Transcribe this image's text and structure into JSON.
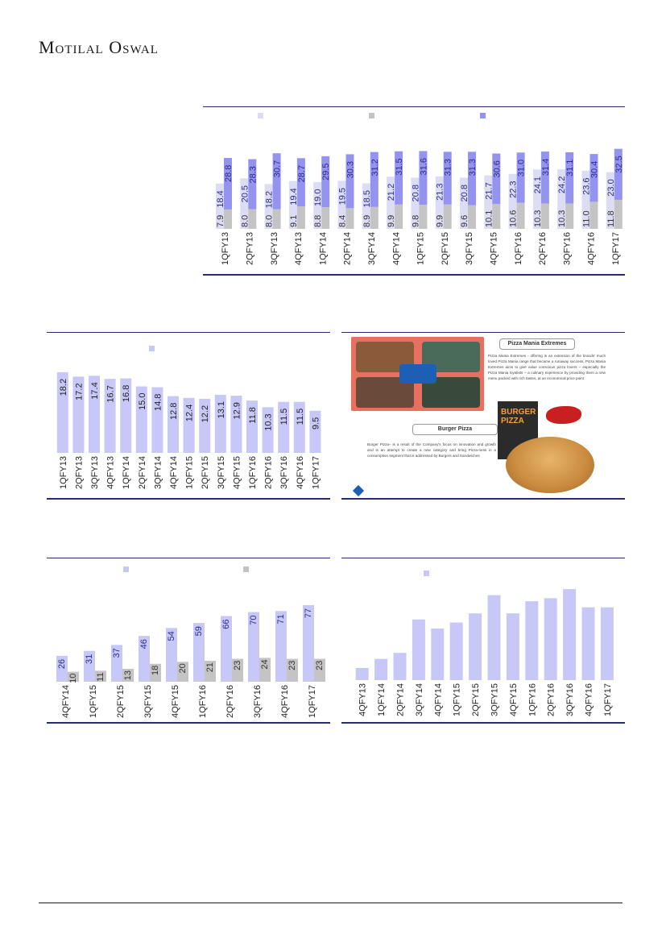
{
  "brand": "Motilal Oswal",
  "chart_data": [
    {
      "type": "bar",
      "categories": [
        "1QFY13",
        "2QFY13",
        "3QFY13",
        "4QFY13",
        "1QFY14",
        "2QFY14",
        "3QFY14",
        "4QFY14",
        "1QFY15",
        "2QFY15",
        "3QFY15",
        "4QFY15",
        "1QFY16",
        "2QFY16",
        "3QFY16",
        "4QFY16",
        "1QFY17"
      ],
      "series": [
        {
          "values": [
            18.4,
            20.5,
            18.2,
            19.4,
            19.0,
            19.5,
            18.5,
            21.2,
            20.8,
            21.3,
            20.8,
            21.7,
            22.3,
            24.1,
            24.2,
            23.6,
            23.0
          ],
          "color": "#dcdcf5",
          "labeled": true
        },
        {
          "values": [
            7.9,
            8.0,
            8.0,
            9.1,
            8.8,
            8.4,
            8.9,
            9.9,
            9.8,
            9.9,
            9.6,
            10.1,
            10.6,
            10.3,
            10.3,
            11.0,
            11.8
          ],
          "color": "#c4c4c4",
          "labeled": true
        },
        {
          "values": [
            28.8,
            28.3,
            30.7,
            28.7,
            29.5,
            30.3,
            31.2,
            31.5,
            31.6,
            31.3,
            31.3,
            30.6,
            31.0,
            31.4,
            31.1,
            30.4,
            32.5
          ],
          "color": "#9494f0",
          "labeled": true
        }
      ],
      "ylim": [
        0,
        36
      ]
    },
    {
      "type": "bar",
      "categories": [
        "1QFY13",
        "2QFY13",
        "3QFY13",
        "4QFY13",
        "1QFY14",
        "2QFY14",
        "3QFY14",
        "4QFY14",
        "1QFY15",
        "2QFY15",
        "3QFY15",
        "4QFY15",
        "1QFY16",
        "2QFY16",
        "3QFY16",
        "4QFY16",
        "1QFY17"
      ],
      "series": [
        {
          "values": [
            18.2,
            17.2,
            17.4,
            16.7,
            16.8,
            15.0,
            14.8,
            12.8,
            12.4,
            12.2,
            13.1,
            12.9,
            11.8,
            10.3,
            11.5,
            11.5,
            9.5
          ],
          "color": "#c8c8f8",
          "labeled": true
        }
      ],
      "ylim": [
        0,
        20
      ]
    },
    {
      "type": "bar",
      "categories": [
        "4QFY14",
        "1QFY15",
        "2QFY15",
        "3QFY15",
        "4QFY15",
        "1QFY16",
        "2QFY16",
        "3QFY16",
        "4QFY16",
        "1QFY17"
      ],
      "series": [
        {
          "values": [
            26,
            31,
            37,
            46,
            54,
            59,
            66,
            70,
            71,
            77
          ],
          "color": "#c8c8f8",
          "labeled": true
        },
        {
          "values": [
            10,
            11,
            13,
            18,
            20,
            21,
            23,
            24,
            23,
            23
          ],
          "color": "#c4c4c4",
          "labeled": true
        }
      ],
      "ylim": [
        0,
        85
      ]
    },
    {
      "type": "bar",
      "categories": [
        "4QFY13",
        "1QFY14",
        "2QFY14",
        "3QFY14",
        "4QFY14",
        "1QFY15",
        "2QFY15",
        "3QFY15",
        "4QFY15",
        "1QFY16",
        "2QFY16",
        "3QFY16",
        "4QFY16",
        "1QFY17"
      ],
      "series": [
        {
          "values": [
            4,
            7,
            9,
            20,
            17,
            19,
            22,
            28,
            22,
            26,
            27,
            30,
            24,
            24
          ],
          "color": "#c8c8f8",
          "labeled": false
        }
      ],
      "ylim": [
        0,
        34
      ]
    }
  ],
  "promo": {
    "title1": "Pizza Mania Extremes",
    "text1": "Pizza Mania Extremes - offering is an extension of the brands' much loved Pizza Mania range that became a runaway success. Pizza Mania Extremes aims to give value conscious pizza lovers – especially the Pizza Mania loyalists – a culinary experience by providing them a new menu packed with rich tastes, at an economical price point",
    "title2": "Burger Pizza",
    "text2": "Burger Pizza– is a result of the Company's focus on innovation and growth and is an attempt to create a new category and bring Pizza-ness in a consumption segment that is addressed by Burgers and Sandwiches",
    "box_text": "BURGER PIZZA"
  }
}
